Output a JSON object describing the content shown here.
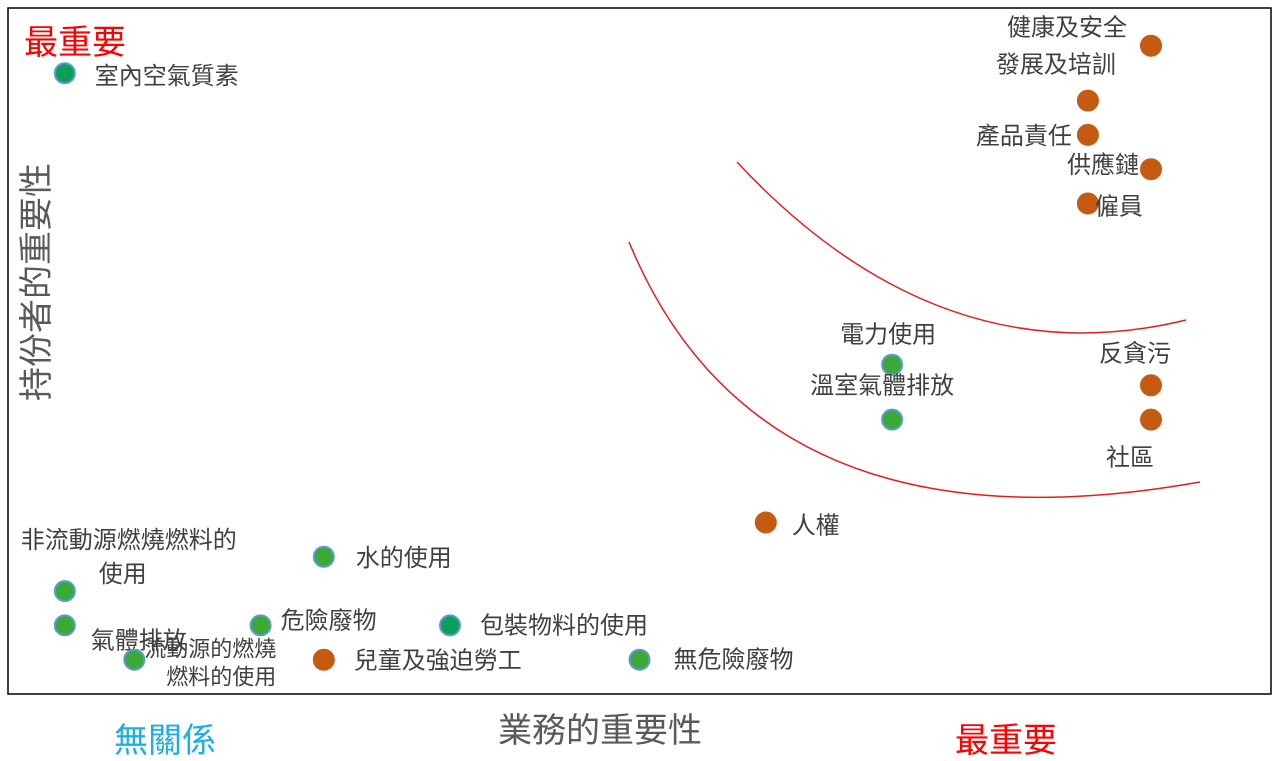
{
  "chart_data": {
    "type": "scatter",
    "title": "",
    "xlabel": "業務的重要性",
    "ylabel": "持份者的重要性",
    "x_low_label": "無關係",
    "x_high_label": "最重要",
    "y_high_label": "最重要",
    "xlim": [
      0,
      100
    ],
    "ylim": [
      0,
      100
    ],
    "grid": false,
    "legend": "none",
    "colors": {
      "environment": "#3aaa35",
      "environment_dark": "#0aa05a",
      "social": "#c55a11",
      "point_outline": "#5b9bd5",
      "curve": "#e02020",
      "x_low_label": "#1ab0e6",
      "high_label": "#ff0000",
      "text": "#404040",
      "axis_title": "#595959"
    },
    "points": [
      {
        "label": "室內空氣質素",
        "x": 4.5,
        "y": 90.5,
        "group": "environment_dark"
      },
      {
        "label": "健康及安全",
        "x": 90.5,
        "y": 94.5,
        "group": "social"
      },
      {
        "label": "發展及培訓",
        "x": 85.5,
        "y": 86.5,
        "group": "social"
      },
      {
        "label": "產品責任",
        "x": 85.5,
        "y": 81.5,
        "group": "social"
      },
      {
        "label": "供應鏈",
        "x": 90.5,
        "y": 76.5,
        "group": "social"
      },
      {
        "label": "僱員",
        "x": 85.5,
        "y": 71.5,
        "group": "social"
      },
      {
        "label": "電力使用",
        "x": 70.0,
        "y": 48.0,
        "group": "environment"
      },
      {
        "label": "溫室氣體排放",
        "x": 70.0,
        "y": 40.0,
        "group": "environment"
      },
      {
        "label": "反貪污",
        "x": 90.5,
        "y": 45.0,
        "group": "social"
      },
      {
        "label": "社區",
        "x": 90.5,
        "y": 40.0,
        "group": "social"
      },
      {
        "label": "人權",
        "x": 60.0,
        "y": 25.0,
        "group": "social"
      },
      {
        "label": "水的使用",
        "x": 25.0,
        "y": 20.0,
        "group": "environment"
      },
      {
        "label": "非流動源燃燒燃料的使用",
        "x": 4.5,
        "y": 15.0,
        "group": "environment"
      },
      {
        "label": "氣體排放",
        "x": 4.5,
        "y": 10.0,
        "group": "environment"
      },
      {
        "label": "危險廢物",
        "x": 20.0,
        "y": 10.0,
        "group": "environment"
      },
      {
        "label": "包裝物料的使用",
        "x": 35.0,
        "y": 10.0,
        "group": "environment_dark"
      },
      {
        "label": "流動源的燃燒燃料的使用",
        "x": 10.0,
        "y": 5.0,
        "group": "environment"
      },
      {
        "label": "兒童及強迫勞工",
        "x": 25.0,
        "y": 5.0,
        "group": "social"
      },
      {
        "label": "無危險廢物",
        "x": 50.0,
        "y": 5.0,
        "group": "environment"
      }
    ]
  }
}
